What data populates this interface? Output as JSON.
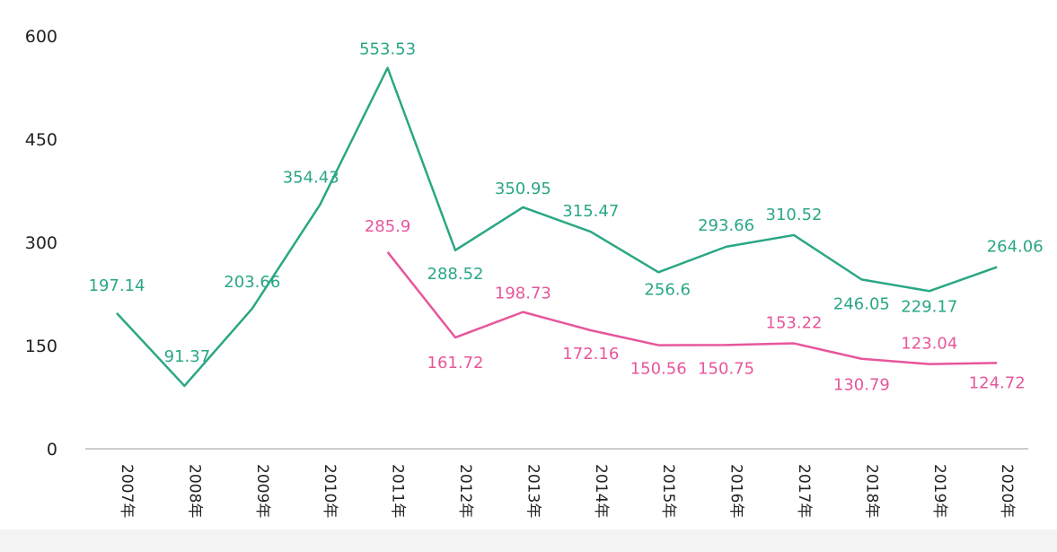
{
  "chart_data": {
    "type": "line",
    "categories": [
      "2007年",
      "2008年",
      "2009年",
      "2010年",
      "2011年",
      "2012年",
      "2013年",
      "2014年",
      "2015年",
      "2016年",
      "2017年",
      "2018年",
      "2019年",
      "2020年"
    ],
    "y_ticks": [
      "0",
      "150",
      "300",
      "450",
      "600"
    ],
    "ylim": [
      0,
      600
    ],
    "grid": false,
    "title": "",
    "xlabel": "",
    "ylabel": "",
    "series": [
      {
        "color": "#2aa784",
        "values": [
          197.14,
          91.37,
          203.66,
          354.43,
          553.53,
          288.52,
          350.95,
          315.47,
          256.6,
          293.66,
          310.52,
          246.05,
          229.17,
          264.06
        ],
        "labels": [
          "197.14",
          "91.37",
          "203.66",
          "354.43",
          "553.53",
          "288.52",
          "350.95",
          "315.47",
          "256.6",
          "293.66",
          "310.52",
          "246.05",
          "229.17",
          "264.06"
        ]
      },
      {
        "color": "#e7569b",
        "values": [
          null,
          null,
          null,
          null,
          285.9,
          161.72,
          198.73,
          172.16,
          150.56,
          150.75,
          153.22,
          130.79,
          123.04,
          124.72
        ],
        "labels": [
          "",
          "",
          "",
          "",
          "285.9",
          "161.72",
          "198.73",
          "172.16",
          "150.56",
          "150.75",
          "153.22",
          "130.79",
          "123.04",
          "124.72"
        ]
      }
    ]
  }
}
